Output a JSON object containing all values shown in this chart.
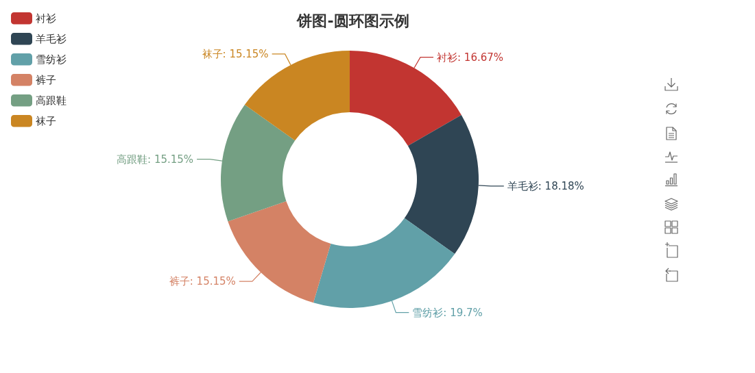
{
  "chart_data": {
    "type": "donut",
    "title": "饼图-圆环图示例",
    "categories": [
      "衬衫",
      "羊毛衫",
      "雪纺衫",
      "裤子",
      "高跟鞋",
      "袜子"
    ],
    "values": [
      16.67,
      18.18,
      19.7,
      15.15,
      15.15,
      15.15
    ],
    "colors": [
      "#c23531",
      "#2f4554",
      "#61a0a8",
      "#d48265",
      "#749f83",
      "#ca8622"
    ],
    "value_labels": [
      "衬衫: 16.67%",
      "羊毛衫: 18.18%",
      "雪纺衫: 19.7%",
      "裤子: 15.15%",
      "高跟鞋: 15.15%",
      "袜子: 15.15%"
    ],
    "legend": "top left"
  }
}
